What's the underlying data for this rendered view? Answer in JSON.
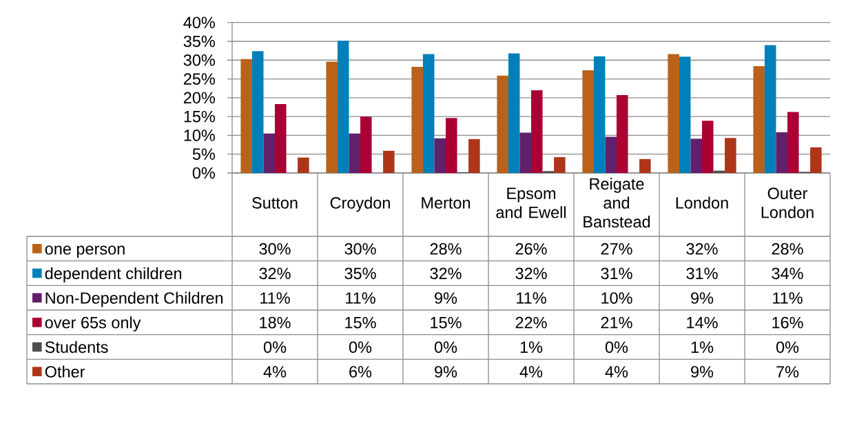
{
  "chart_data": {
    "type": "bar",
    "categories": [
      "Sutton",
      "Croydon",
      "Merton",
      "Epsom and Ewell",
      "Reigate and Banstead",
      "London",
      "Outer London"
    ],
    "series": [
      {
        "name": "one person",
        "color": "#B8621A",
        "values": [
          30.3,
          29.6,
          28.2,
          25.9,
          27.3,
          31.6,
          28.4
        ],
        "value_labels": [
          "30%",
          "30%",
          "28%",
          "26%",
          "27%",
          "32%",
          "28%"
        ]
      },
      {
        "name": "dependent children",
        "color": "#0080BB",
        "values": [
          32.4,
          35.2,
          31.6,
          31.8,
          31.0,
          30.9,
          34.0
        ],
        "value_labels": [
          "32%",
          "35%",
          "32%",
          "32%",
          "31%",
          "31%",
          "34%"
        ]
      },
      {
        "name": "Non-Dependent Children",
        "color": "#621F6C",
        "values": [
          10.5,
          10.5,
          9.2,
          10.7,
          9.6,
          9.1,
          10.8
        ],
        "value_labels": [
          "11%",
          "11%",
          "9%",
          "11%",
          "10%",
          "9%",
          "11%"
        ]
      },
      {
        "name": "over 65s only",
        "color": "#AB0033",
        "values": [
          18.3,
          15.0,
          14.6,
          22.0,
          20.7,
          13.9,
          16.2
        ],
        "value_labels": [
          "18%",
          "15%",
          "15%",
          "22%",
          "21%",
          "14%",
          "16%"
        ]
      },
      {
        "name": "Students",
        "color": "#4D4D4D",
        "values": [
          0,
          0,
          0.2,
          0.5,
          0,
          0.6,
          0.3
        ],
        "value_labels": [
          "0%",
          "0%",
          "0%",
          "1%",
          "0%",
          "1%",
          "0%"
        ]
      },
      {
        "name": "Other",
        "color": "#AE3519",
        "values": [
          4.1,
          5.9,
          9.0,
          4.2,
          3.7,
          9.3,
          6.8
        ],
        "value_labels": [
          "4%",
          "6%",
          "9%",
          "4%",
          "4%",
          "9%",
          "7%"
        ]
      }
    ],
    "ylim": [
      0,
      40
    ],
    "yticks": [
      {
        "value": 0,
        "label": "0%"
      },
      {
        "value": 5,
        "label": "5%"
      },
      {
        "value": 10,
        "label": "10%"
      },
      {
        "value": 15,
        "label": "15%"
      },
      {
        "value": 20,
        "label": "20%"
      },
      {
        "value": 25,
        "label": "25%"
      },
      {
        "value": 30,
        "label": "30%"
      },
      {
        "value": 35,
        "label": "35%"
      },
      {
        "value": 40,
        "label": "40%"
      }
    ],
    "grid": "y",
    "legend": "bottom left"
  }
}
